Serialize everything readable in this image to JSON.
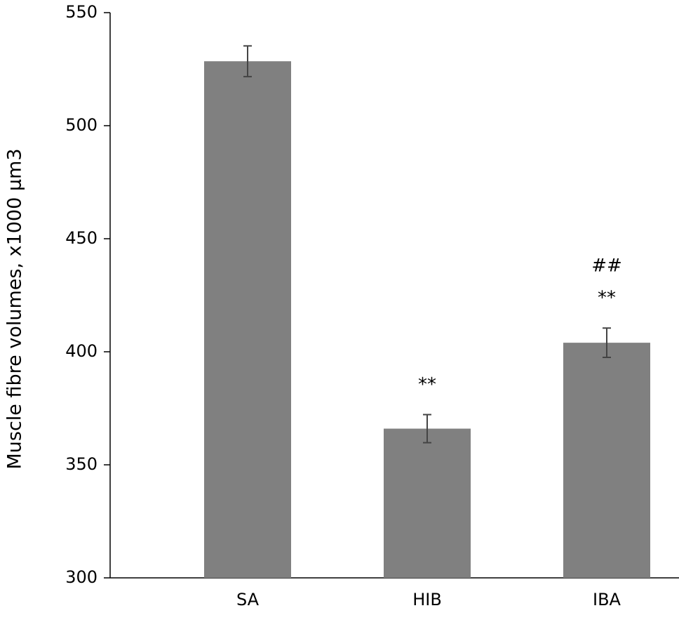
{
  "chart_data": {
    "type": "bar",
    "y_label": "Muscle fibre volumes, x1000 µm3",
    "categories": [
      "SA",
      "HIB",
      "IBA"
    ],
    "values": [
      528.5,
      366,
      404
    ],
    "errors": [
      6.8,
      6.2,
      6.5
    ],
    "color": "#808080",
    "ylim": [
      300,
      550
    ],
    "yticks": [
      300,
      350,
      400,
      450,
      500,
      550
    ],
    "grid": false,
    "annotations": [
      {
        "category": "HIB",
        "lines": [
          "**"
        ]
      },
      {
        "category": "IBA",
        "lines": [
          "##",
          "**"
        ]
      }
    ]
  }
}
